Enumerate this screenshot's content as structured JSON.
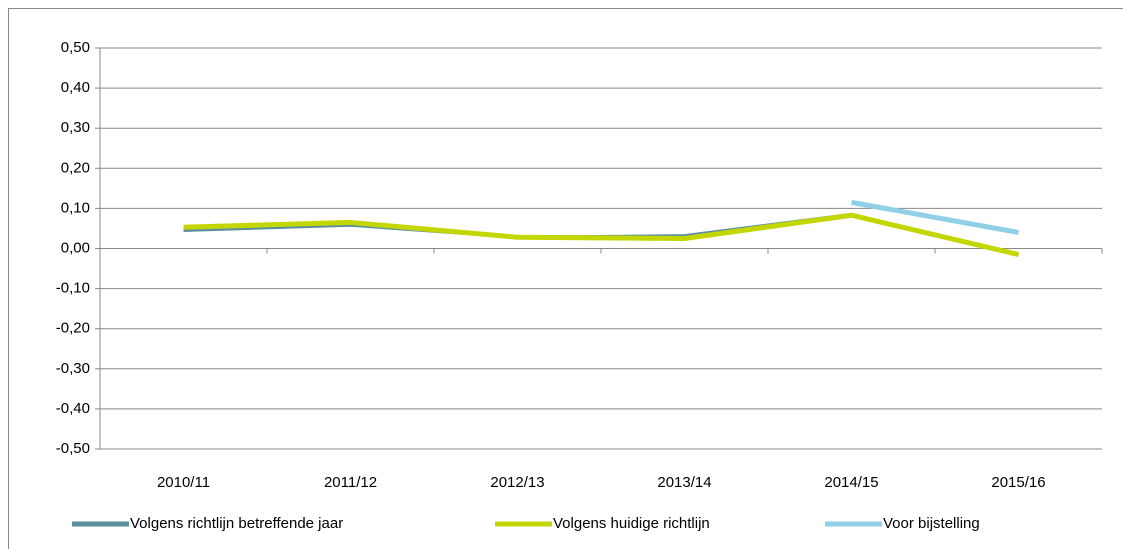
{
  "chart_data": {
    "type": "line",
    "categories": [
      "2010/11",
      "2011/12",
      "2012/13",
      "2013/14",
      "2014/15",
      "2015/16"
    ],
    "series": [
      {
        "name": "Volgens richtlijn betreffende jaar",
        "color": "#5b8fa0",
        "values": [
          0.045,
          0.058,
          0.028,
          0.032,
          0.085,
          -0.015
        ]
      },
      {
        "name": "Volgens huidige richtlijn",
        "color": "#c4d600",
        "values": [
          0.053,
          0.065,
          0.028,
          0.025,
          0.083,
          -0.015
        ]
      },
      {
        "name": "Voor bijstelling",
        "color": "#8fd0e6",
        "values": [
          null,
          null,
          null,
          null,
          0.115,
          0.04
        ]
      }
    ],
    "ylim": [
      -0.5,
      0.5
    ],
    "yticks": [
      {
        "value": -0.5,
        "label": "-0,50"
      },
      {
        "value": -0.4,
        "label": "-0,40"
      },
      {
        "value": -0.3,
        "label": "-0,30"
      },
      {
        "value": -0.2,
        "label": "-0,20"
      },
      {
        "value": -0.1,
        "label": "-0,10"
      },
      {
        "value": 0,
        "label": "0,00"
      },
      {
        "value": 0.1,
        "label": "0,10"
      },
      {
        "value": 0.2,
        "label": "0,20"
      },
      {
        "value": 0.3,
        "label": "0,30"
      },
      {
        "value": 0.4,
        "label": "0,40"
      },
      {
        "value": 0.5,
        "label": "0,50"
      }
    ],
    "grid": true,
    "legend": "bottom"
  }
}
